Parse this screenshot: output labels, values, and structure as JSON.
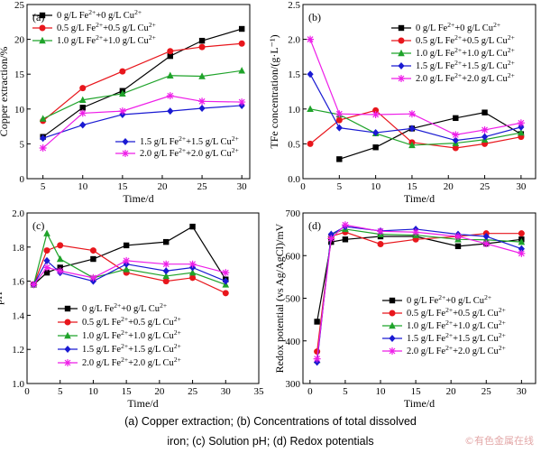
{
  "figure": {
    "caption_line1": "(a) Copper extraction; (b) Concentrations of total dissolved",
    "caption_line2": "iron; (c) Solution pH; (d) Redox potentials",
    "watermark": "©有色金属在线"
  },
  "chart_data": [
    {
      "type": "line",
      "panel_label": "(a)",
      "xlabel": "Time/d",
      "ylabel": "Copper extraction/%",
      "xlim": [
        3,
        31
      ],
      "ylim": [
        0,
        25
      ],
      "xticks": [
        5,
        10,
        15,
        20,
        25,
        30
      ],
      "yticks": [
        0,
        5,
        10,
        15,
        20,
        25
      ],
      "legend_position": "top-left and bottom-right",
      "series": [
        {
          "name": "0 g/L Fe2++0 g/L Cu2+",
          "ion1": "0 g/L Fe",
          "ion2": "+0 g/L Cu",
          "color": "#000000",
          "marker": "square",
          "legend_group": 0,
          "x": [
            5,
            10,
            15,
            21,
            25,
            30
          ],
          "y": [
            6.0,
            10.2,
            12.6,
            17.6,
            19.8,
            21.5
          ]
        },
        {
          "name": "0.5 g/L Fe2++0.5 g/L Cu2+",
          "ion1": "0.5 g/L Fe",
          "ion2": "+0.5 g/L Cu",
          "color": "#e8161c",
          "marker": "circle",
          "legend_group": 0,
          "x": [
            5,
            10,
            15,
            21,
            25,
            30
          ],
          "y": [
            8.3,
            13.0,
            15.4,
            18.3,
            18.9,
            19.4
          ]
        },
        {
          "name": "1.0 g/L Fe2++1.0 g/L Cu2+",
          "ion1": "1.0 g/L Fe",
          "ion2": "+1.0 g/L Cu",
          "color": "#1fa32a",
          "marker": "triangle",
          "legend_group": 0,
          "x": [
            5,
            10,
            15,
            21,
            25,
            30
          ],
          "y": [
            8.6,
            11.3,
            12.2,
            14.8,
            14.7,
            15.5
          ]
        },
        {
          "name": "1.5 g/L Fe2++1.5 g/L Cu2+",
          "ion1": "1.5 g/L Fe",
          "ion2": "+1.5 g/L Cu",
          "color": "#1a1ad2",
          "marker": "diamond",
          "legend_group": 1,
          "x": [
            5,
            10,
            15,
            21,
            25,
            30
          ],
          "y": [
            5.8,
            7.7,
            9.2,
            9.7,
            10.1,
            10.5
          ]
        },
        {
          "name": "2.0 g/L Fe2++2.0 g/L Cu2+",
          "ion1": "2.0 g/L Fe",
          "ion2": "+2.0 g/L Cu",
          "color": "#ee1ee8",
          "marker": "star",
          "legend_group": 1,
          "x": [
            5,
            10,
            15,
            21,
            25,
            30
          ],
          "y": [
            4.4,
            9.4,
            9.7,
            11.9,
            11.1,
            11.0
          ]
        }
      ]
    },
    {
      "type": "line",
      "panel_label": "(b)",
      "xlabel": "Time/d",
      "ylabel": "TFe concentration/(g·L⁻¹)",
      "xlim": [
        0,
        32
      ],
      "ylim": [
        0,
        2.5
      ],
      "xticks": [
        0,
        5,
        10,
        15,
        20,
        25,
        30
      ],
      "yticks": [
        0,
        0.5,
        1.0,
        1.5,
        2.0,
        2.5
      ],
      "legend_position": "top-right",
      "series": [
        {
          "name": "0 g/L Fe2++0 g/L Cu2+",
          "ion1": "0 g/L Fe",
          "ion2": "+0 g/L Cu",
          "color": "#000000",
          "marker": "square",
          "x": [
            5,
            10,
            15,
            21,
            25,
            30
          ],
          "y": [
            0.28,
            0.45,
            0.72,
            0.87,
            0.95,
            0.64
          ]
        },
        {
          "name": "0.5 g/L Fe2++0.5 g/L Cu2+",
          "ion1": "0.5 g/L Fe",
          "ion2": "+0.5 g/L Cu",
          "color": "#e8161c",
          "marker": "circle",
          "x": [
            1,
            5,
            10,
            15,
            21,
            25,
            30
          ],
          "y": [
            0.5,
            0.84,
            0.98,
            0.52,
            0.44,
            0.5,
            0.6
          ]
        },
        {
          "name": "1.0 g/L Fe2++1.0 g/L Cu2+",
          "ion1": "1.0 g/L Fe",
          "ion2": "+1.0 g/L Cu",
          "color": "#1fa32a",
          "marker": "triangle",
          "x": [
            1,
            5,
            10,
            15,
            21,
            25,
            30
          ],
          "y": [
            1.0,
            0.92,
            0.65,
            0.48,
            0.51,
            0.56,
            0.66
          ]
        },
        {
          "name": "1.5 g/L Fe2++1.5 g/L Cu2+",
          "ion1": "1.5 g/L Fe",
          "ion2": "+1.5 g/L Cu",
          "color": "#1a1ad2",
          "marker": "diamond",
          "x": [
            1,
            5,
            10,
            15,
            21,
            25,
            30
          ],
          "y": [
            1.5,
            0.73,
            0.66,
            0.72,
            0.55,
            0.6,
            0.74
          ]
        },
        {
          "name": "2.0 g/L Fe2++2.0 g/L Cu2+",
          "ion1": "2.0 g/L Fe",
          "ion2": "+2.0 g/L Cu",
          "color": "#ee1ee8",
          "marker": "star",
          "x": [
            1,
            5,
            10,
            15,
            21,
            25,
            30
          ],
          "y": [
            2.0,
            0.93,
            0.92,
            0.93,
            0.63,
            0.7,
            0.8
          ]
        }
      ]
    },
    {
      "type": "line",
      "panel_label": "(c)",
      "xlabel": "Time/d",
      "ylabel": "pH",
      "xlim": [
        0,
        35
      ],
      "ylim": [
        1.0,
        2.0
      ],
      "xticks": [
        0,
        5,
        10,
        15,
        20,
        25,
        30,
        35
      ],
      "yticks": [
        1.0,
        1.2,
        1.4,
        1.6,
        1.8,
        2.0
      ],
      "legend_position": "center-left",
      "series": [
        {
          "name": "0 g/L Fe2++0 g/L Cu2+",
          "ion1": "0 g/L Fe",
          "ion2": "+0 g/L Cu",
          "color": "#000000",
          "marker": "square",
          "x": [
            1,
            3,
            5,
            10,
            15,
            21,
            25,
            30
          ],
          "y": [
            1.58,
            1.65,
            1.68,
            1.73,
            1.81,
            1.83,
            1.92,
            1.61
          ]
        },
        {
          "name": "0.5 g/L Fe2++0.5 g/L Cu2+",
          "ion1": "0.5 g/L Fe",
          "ion2": "+0.5 g/L Cu",
          "color": "#e8161c",
          "marker": "circle",
          "x": [
            1,
            3,
            5,
            10,
            15,
            21,
            25,
            30
          ],
          "y": [
            1.58,
            1.78,
            1.81,
            1.78,
            1.65,
            1.6,
            1.62,
            1.53
          ]
        },
        {
          "name": "1.0 g/L Fe2++1.0 g/L Cu2+",
          "ion1": "1.0 g/L Fe",
          "ion2": "+1.0 g/L Cu",
          "color": "#1fa32a",
          "marker": "triangle",
          "x": [
            1,
            3,
            5,
            10,
            15,
            21,
            25,
            30
          ],
          "y": [
            1.58,
            1.88,
            1.73,
            1.62,
            1.67,
            1.63,
            1.65,
            1.58
          ]
        },
        {
          "name": "1.5 g/L Fe2++1.5 g/L Cu2+",
          "ion1": "1.5 g/L Fe",
          "ion2": "+1.5 g/L Cu",
          "color": "#1a1ad2",
          "marker": "diamond",
          "x": [
            1,
            3,
            5,
            10,
            15,
            21,
            25,
            30
          ],
          "y": [
            1.58,
            1.72,
            1.65,
            1.6,
            1.7,
            1.66,
            1.68,
            1.6
          ]
        },
        {
          "name": "2.0 g/L Fe2++2.0 g/L Cu2+",
          "ion1": "2.0 g/L Fe",
          "ion2": "+2.0 g/L Cu",
          "color": "#ee1ee8",
          "marker": "star",
          "x": [
            1,
            3,
            5,
            10,
            15,
            21,
            25,
            30
          ],
          "y": [
            1.58,
            1.68,
            1.66,
            1.62,
            1.72,
            1.7,
            1.7,
            1.65
          ]
        }
      ]
    },
    {
      "type": "line",
      "panel_label": "(d)",
      "xlabel": "Time/d",
      "ylabel": "Redox potential (vs Ag/AgCl)/mV",
      "xlim": [
        -1,
        32
      ],
      "ylim": [
        300,
        700
      ],
      "xticks": [
        0,
        5,
        10,
        15,
        20,
        25,
        30
      ],
      "yticks": [
        300,
        400,
        500,
        600,
        700
      ],
      "legend_position": "center-left",
      "series": [
        {
          "name": "0 g/L Fe2++0 g/L Cu2+",
          "ion1": "0 g/L Fe",
          "ion2": "+0 g/L Cu",
          "color": "#000000",
          "marker": "square",
          "x": [
            1,
            3,
            5,
            10,
            15,
            21,
            25,
            30
          ],
          "y": [
            445,
            632,
            638,
            645,
            645,
            622,
            628,
            638
          ]
        },
        {
          "name": "0.5 g/L Fe2++0.5 g/L Cu2+",
          "ion1": "0.5 g/L Fe",
          "ion2": "+0.5 g/L Cu",
          "color": "#e8161c",
          "marker": "circle",
          "x": [
            1,
            3,
            5,
            10,
            15,
            21,
            25,
            30
          ],
          "y": [
            375,
            645,
            655,
            627,
            638,
            645,
            652,
            652
          ]
        },
        {
          "name": "1.0 g/L Fe2++1.0 g/L Cu2+",
          "ion1": "1.0 g/L Fe",
          "ion2": "+1.0 g/L Cu",
          "color": "#1fa32a",
          "marker": "triangle",
          "x": [
            1,
            3,
            5,
            10,
            15,
            21,
            25,
            30
          ],
          "y": [
            355,
            650,
            662,
            650,
            648,
            638,
            637,
            632
          ]
        },
        {
          "name": "1.5 g/L Fe2++1.5 g/L Cu2+",
          "ion1": "1.5 g/L Fe",
          "ion2": "+1.5 g/L Cu",
          "color": "#1a1ad2",
          "marker": "diamond",
          "x": [
            1,
            3,
            5,
            10,
            15,
            21,
            25,
            30
          ],
          "y": [
            350,
            650,
            668,
            658,
            662,
            650,
            645,
            616
          ]
        },
        {
          "name": "2.0 g/L Fe2++2.0 g/L Cu2+",
          "ion1": "2.0 g/L Fe",
          "ion2": "+2.0 g/L Cu",
          "color": "#ee1ee8",
          "marker": "star",
          "x": [
            1,
            3,
            5,
            10,
            15,
            21,
            25,
            30
          ],
          "y": [
            358,
            640,
            672,
            657,
            655,
            645,
            628,
            605
          ]
        }
      ]
    }
  ]
}
